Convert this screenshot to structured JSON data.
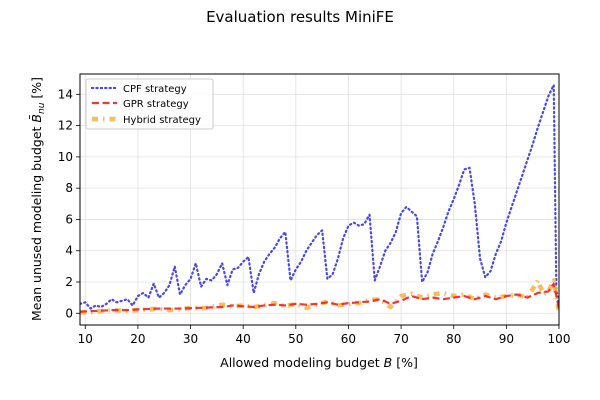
{
  "chart_data": {
    "type": "line",
    "title": "Evaluation results MiniFE",
    "xlabel": "Allowed modeling budget B [%]",
    "xlabel_parts": [
      "Allowed modeling budget ",
      "B",
      " [%]"
    ],
    "ylabel": "Mean unused modeling budget B̄nu [%]",
    "ylabel_parts": [
      "Mean unused modeling budget ",
      "B̄",
      "nu",
      " [%]"
    ],
    "xlim": [
      9,
      100
    ],
    "ylim": [
      -0.75,
      15.3
    ],
    "xticks": [
      10,
      20,
      30,
      40,
      50,
      60,
      70,
      80,
      90,
      100
    ],
    "yticks": [
      0,
      2,
      4,
      6,
      8,
      10,
      12,
      14
    ],
    "grid": true,
    "legend_position": "top-left",
    "series": [
      {
        "name": "CPF strategy",
        "color": "#3333ee",
        "style": "dotted",
        "points": [
          [
            9,
            0.6
          ],
          [
            10,
            0.7
          ],
          [
            11,
            0.3
          ],
          [
            12,
            0.5
          ],
          [
            13,
            0.4
          ],
          [
            14,
            0.6
          ],
          [
            15,
            0.9
          ],
          [
            16,
            0.7
          ],
          [
            17,
            0.8
          ],
          [
            18,
            0.9
          ],
          [
            19,
            0.5
          ],
          [
            20,
            1.1
          ],
          [
            21,
            1.3
          ],
          [
            22,
            1.0
          ],
          [
            23,
            1.9
          ],
          [
            24,
            1.0
          ],
          [
            25,
            1.3
          ],
          [
            26,
            1.8
          ],
          [
            27,
            3.0
          ],
          [
            28,
            1.2
          ],
          [
            29,
            1.8
          ],
          [
            30,
            2.2
          ],
          [
            31,
            3.2
          ],
          [
            32,
            1.7
          ],
          [
            33,
            2.2
          ],
          [
            34,
            2.1
          ],
          [
            35,
            2.5
          ],
          [
            36,
            3.2
          ],
          [
            37,
            1.8
          ],
          [
            38,
            2.8
          ],
          [
            39,
            2.9
          ],
          [
            40,
            3.3
          ],
          [
            41,
            3.6
          ],
          [
            42,
            1.3
          ],
          [
            43,
            2.5
          ],
          [
            44,
            3.3
          ],
          [
            45,
            3.8
          ],
          [
            46,
            4.2
          ],
          [
            47,
            4.8
          ],
          [
            48,
            5.2
          ],
          [
            49,
            2.1
          ],
          [
            50,
            2.8
          ],
          [
            51,
            3.3
          ],
          [
            52,
            4.0
          ],
          [
            53,
            4.5
          ],
          [
            54,
            5.0
          ],
          [
            55,
            5.3
          ],
          [
            56,
            2.2
          ],
          [
            57,
            2.5
          ],
          [
            58,
            3.5
          ],
          [
            59,
            4.8
          ],
          [
            60,
            5.6
          ],
          [
            61,
            5.8
          ],
          [
            62,
            5.6
          ],
          [
            63,
            5.7
          ],
          [
            64,
            6.3
          ],
          [
            65,
            2.1
          ],
          [
            66,
            3.0
          ],
          [
            67,
            4.0
          ],
          [
            68,
            4.5
          ],
          [
            69,
            5.2
          ],
          [
            70,
            6.4
          ],
          [
            71,
            6.8
          ],
          [
            72,
            6.5
          ],
          [
            73,
            6.2
          ],
          [
            74,
            2.0
          ],
          [
            75,
            2.6
          ],
          [
            76,
            3.8
          ],
          [
            77,
            4.6
          ],
          [
            78,
            5.5
          ],
          [
            79,
            6.5
          ],
          [
            80,
            7.3
          ],
          [
            81,
            8.2
          ],
          [
            82,
            9.2
          ],
          [
            83,
            9.3
          ],
          [
            84,
            7.0
          ],
          [
            85,
            3.5
          ],
          [
            86,
            2.3
          ],
          [
            87,
            2.7
          ],
          [
            88,
            3.8
          ],
          [
            89,
            4.6
          ],
          [
            90,
            5.8
          ],
          [
            91,
            6.8
          ],
          [
            92,
            7.8
          ],
          [
            93,
            8.8
          ],
          [
            94,
            9.8
          ],
          [
            95,
            10.8
          ],
          [
            96,
            11.9
          ],
          [
            97,
            12.9
          ],
          [
            98,
            13.9
          ],
          [
            99,
            14.6
          ],
          [
            99.5,
            1.5
          ],
          [
            100,
            0.5
          ]
        ]
      },
      {
        "name": "GPR strategy",
        "color": "#ee2222",
        "style": "dashed",
        "points": [
          [
            9,
            0.1
          ],
          [
            12,
            0.15
          ],
          [
            15,
            0.2
          ],
          [
            18,
            0.2
          ],
          [
            20,
            0.25
          ],
          [
            24,
            0.3
          ],
          [
            28,
            0.3
          ],
          [
            32,
            0.35
          ],
          [
            36,
            0.4
          ],
          [
            38,
            0.5
          ],
          [
            40,
            0.45
          ],
          [
            42,
            0.4
          ],
          [
            44,
            0.5
          ],
          [
            46,
            0.55
          ],
          [
            48,
            0.5
          ],
          [
            50,
            0.6
          ],
          [
            52,
            0.55
          ],
          [
            54,
            0.6
          ],
          [
            56,
            0.7
          ],
          [
            58,
            0.55
          ],
          [
            60,
            0.65
          ],
          [
            62,
            0.7
          ],
          [
            64,
            0.75
          ],
          [
            66,
            0.9
          ],
          [
            68,
            0.6
          ],
          [
            70,
            0.8
          ],
          [
            72,
            1.1
          ],
          [
            74,
            0.9
          ],
          [
            76,
            1.0
          ],
          [
            78,
            0.9
          ],
          [
            80,
            1.0
          ],
          [
            82,
            1.1
          ],
          [
            84,
            0.9
          ],
          [
            86,
            1.1
          ],
          [
            88,
            0.9
          ],
          [
            90,
            1.1
          ],
          [
            92,
            1.2
          ],
          [
            94,
            1.0
          ],
          [
            96,
            1.3
          ],
          [
            98,
            1.4
          ],
          [
            99,
            1.9
          ],
          [
            100,
            0.3
          ]
        ]
      },
      {
        "name": "Hybrid strategy",
        "color": "#f7b23b",
        "style": "dashdot",
        "points": [
          [
            9,
            0.05
          ],
          [
            12,
            0.1
          ],
          [
            15,
            0.2
          ],
          [
            18,
            0.15
          ],
          [
            20,
            0.2
          ],
          [
            22,
            0.25
          ],
          [
            24,
            0.3
          ],
          [
            26,
            0.2
          ],
          [
            28,
            0.25
          ],
          [
            30,
            0.35
          ],
          [
            32,
            0.3
          ],
          [
            34,
            0.4
          ],
          [
            36,
            0.55
          ],
          [
            38,
            0.45
          ],
          [
            40,
            0.5
          ],
          [
            42,
            0.4
          ],
          [
            44,
            0.5
          ],
          [
            46,
            0.65
          ],
          [
            48,
            0.45
          ],
          [
            50,
            0.6
          ],
          [
            52,
            0.35
          ],
          [
            54,
            0.55
          ],
          [
            56,
            0.75
          ],
          [
            58,
            0.5
          ],
          [
            60,
            0.6
          ],
          [
            62,
            0.65
          ],
          [
            64,
            0.85
          ],
          [
            66,
            0.9
          ],
          [
            68,
            0.4
          ],
          [
            70,
            1.1
          ],
          [
            72,
            1.25
          ],
          [
            74,
            1.0
          ],
          [
            76,
            1.2
          ],
          [
            78,
            1.3
          ],
          [
            80,
            1.1
          ],
          [
            82,
            1.2
          ],
          [
            84,
            0.9
          ],
          [
            86,
            1.2
          ],
          [
            88,
            1.0
          ],
          [
            90,
            1.1
          ],
          [
            92,
            1.2
          ],
          [
            94,
            1.0
          ],
          [
            96,
            2.1
          ],
          [
            97,
            1.2
          ],
          [
            98,
            1.4
          ],
          [
            99,
            2.1
          ],
          [
            100,
            0.1
          ]
        ]
      }
    ]
  }
}
